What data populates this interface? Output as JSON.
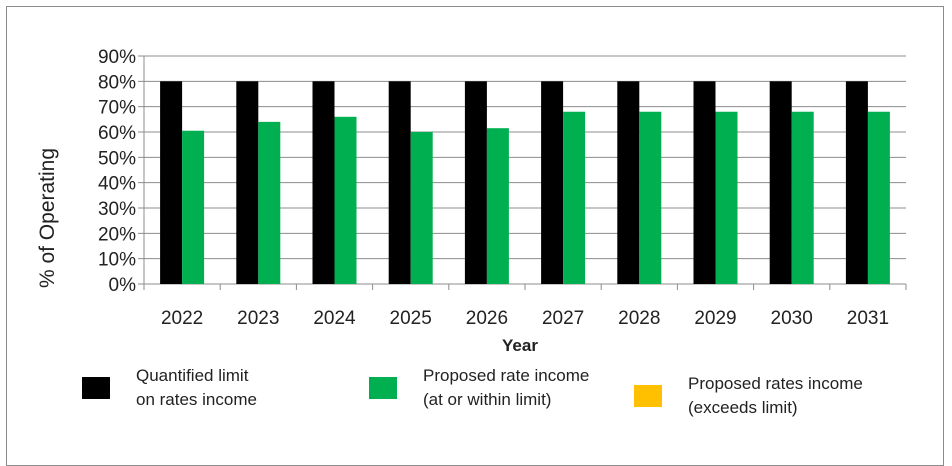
{
  "chart_data": {
    "type": "bar",
    "title": "",
    "xlabel": "Year",
    "ylabel": "% of Operating",
    "ylim": [
      0,
      90
    ],
    "yticks": [
      "0%",
      "10%",
      "20%",
      "30%",
      "40%",
      "50%",
      "60%",
      "70%",
      "80%",
      "90%"
    ],
    "grid": true,
    "categories": [
      "2022",
      "2023",
      "2024",
      "2025",
      "2026",
      "2027",
      "2028",
      "2029",
      "2030",
      "2031"
    ],
    "series": [
      {
        "name": "Quantified limit on rates income",
        "color": "#000000",
        "values": [
          80,
          80,
          80,
          80,
          80,
          80,
          80,
          80,
          80,
          80
        ]
      },
      {
        "name": "Proposed rate income (at or within limit)",
        "color": "#00b050",
        "values": [
          60.5,
          64,
          66,
          60,
          61.5,
          68,
          68,
          68,
          68,
          68
        ]
      },
      {
        "name": "Proposed rates income (exceeds limit)",
        "color": "#ffc000",
        "values": [
          0,
          0,
          0,
          0,
          0,
          0,
          0,
          0,
          0,
          0
        ]
      }
    ]
  },
  "legend": [
    {
      "label": "Quantified limit\non rates income",
      "color": "#000000"
    },
    {
      "label": "Proposed rate income\n(at or within limit)",
      "color": "#00b050"
    },
    {
      "label": "Proposed rates income\n(exceeds limit)",
      "color": "#ffc000"
    }
  ]
}
